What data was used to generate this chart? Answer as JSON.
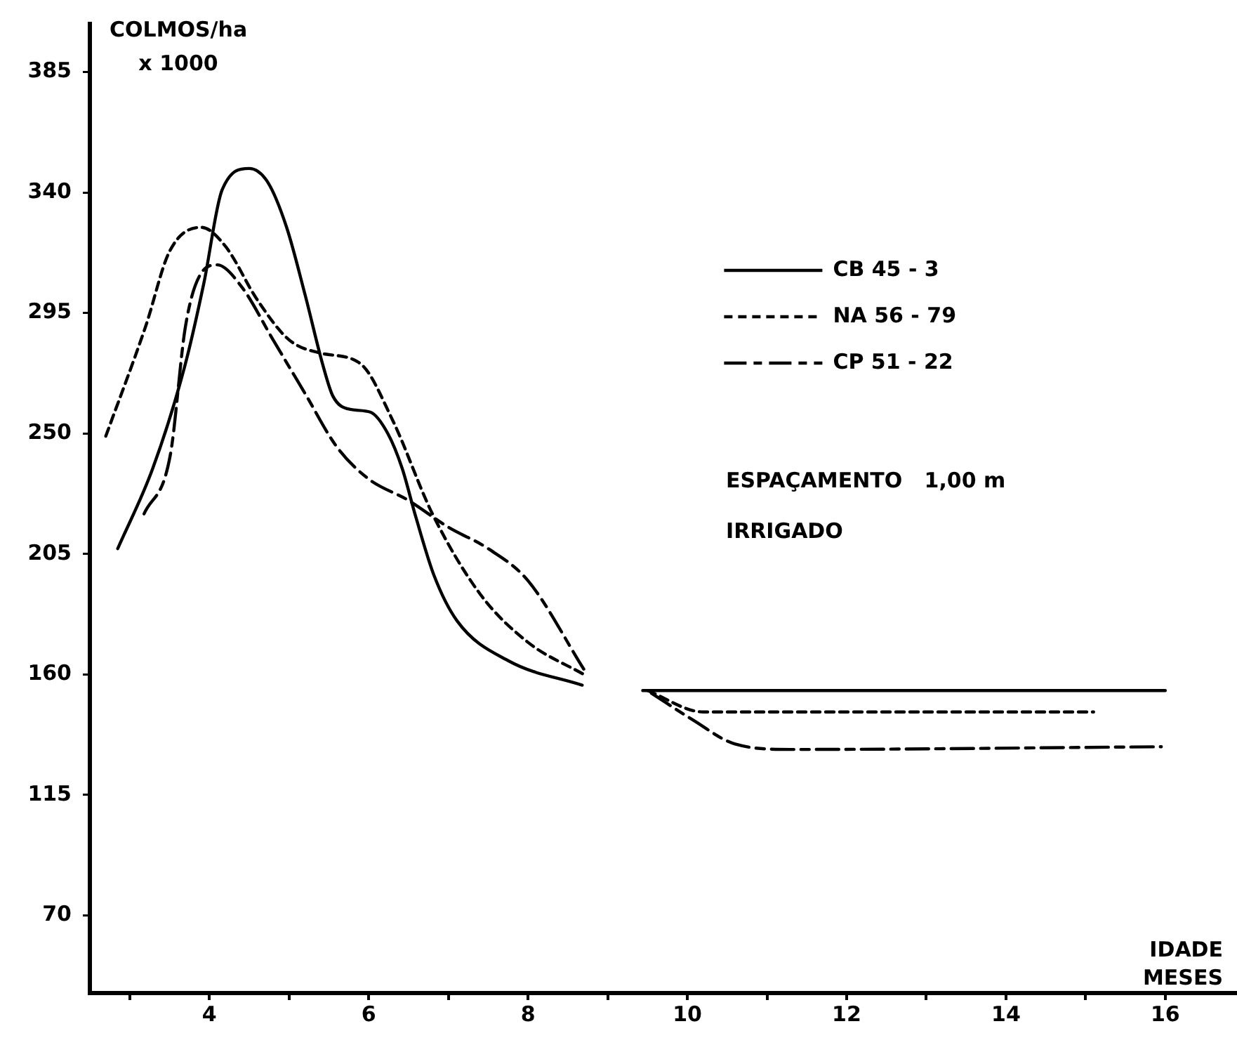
{
  "chart_data": {
    "type": "line",
    "xlabel": "IDADE\nMESES",
    "ylabel": "COLMOS/ha\nx 1000",
    "xlim": [
      2.5,
      16.9
    ],
    "ylim": [
      41,
      403
    ],
    "xticks": [
      {
        "value": 3,
        "label": null
      },
      4,
      {
        "value": 5,
        "label": null
      },
      6,
      {
        "value": 7,
        "label": null
      },
      8,
      {
        "value": 9,
        "label": null
      },
      10,
      {
        "value": 11,
        "label": null
      },
      12,
      {
        "value": 13,
        "label": null
      },
      14,
      {
        "value": 15,
        "label": null
      },
      16
    ],
    "yticks": [
      70,
      115,
      160,
      205,
      250,
      295,
      340,
      385
    ],
    "grid": false,
    "legend": "top right",
    "marker": "none",
    "annotations": [
      "ESPAÇAMENTO   1,00 m",
      "IRRIGADO"
    ],
    "series": [
      {
        "name": "CB 45 - 3",
        "color": "#000000",
        "line_style": "solid",
        "x": [
          2.85,
          3.29,
          3.69,
          3.93,
          4.16,
          4.5,
          4.73,
          4.97,
          5.2,
          5.43,
          5.55,
          5.77,
          6.02,
          6.24,
          6.42,
          6.59,
          6.82,
          7.11,
          7.76,
          8.68,
          9.0,
          9.44,
          16.0
        ],
        "values": [
          207,
          237,
          275,
          306,
          341,
          349,
          344,
          327,
          302,
          275,
          264,
          259,
          258,
          250,
          237,
          219,
          197,
          180,
          165,
          156,
          null,
          154,
          154
        ]
      },
      {
        "name": "NA 56 - 79",
        "color": "#000000",
        "line_style": "dotted",
        "x": [
          2.7,
          3.2,
          3.5,
          3.9,
          4.2,
          4.6,
          5.0,
          5.4,
          5.9,
          6.3,
          6.8,
          7.4,
          8.0,
          8.7,
          9.0,
          9.5,
          10.2,
          15.1
        ],
        "values": [
          249,
          290,
          318,
          327,
          320,
          300,
          285,
          280,
          276,
          255,
          220,
          190,
          172,
          160,
          null,
          154,
          146,
          146
        ]
      },
      {
        "name": "CP 51 - 22",
        "color": "#000000",
        "line_style": "dashed",
        "x": [
          3.18,
          3.51,
          3.7,
          3.9,
          4.1,
          4.4,
          4.8,
          5.2,
          5.6,
          6.0,
          6.5,
          7.0,
          7.5,
          8.0,
          8.7,
          9.0,
          9.55,
          10.07,
          10.6,
          11.3,
          15.95
        ],
        "values": [
          220,
          242,
          290,
          310,
          313,
          305,
          285,
          265,
          245,
          233,
          225,
          215,
          207,
          195,
          162,
          null,
          153,
          143,
          134,
          132,
          133
        ]
      }
    ]
  }
}
